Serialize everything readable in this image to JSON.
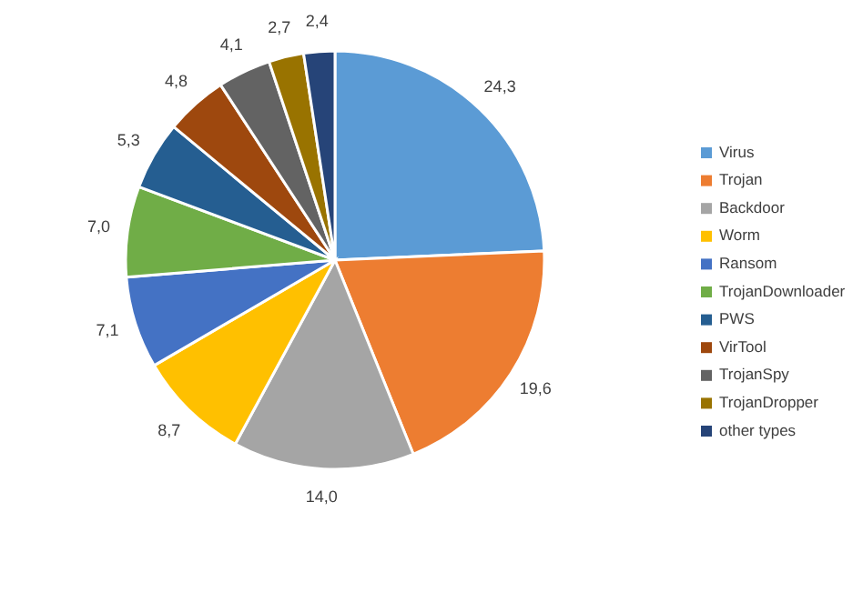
{
  "chart_data": {
    "type": "pie",
    "categories": [
      "Virus",
      "Trojan",
      "Backdoor",
      "Worm",
      "Ransom",
      "TrojanDownloader",
      "PWS",
      "VirTool",
      "TrojanSpy",
      "TrojanDropper",
      "other types"
    ],
    "values": [
      24.3,
      19.6,
      14.0,
      8.7,
      7.1,
      7.0,
      5.3,
      4.8,
      4.1,
      2.7,
      2.4
    ],
    "value_labels": [
      "24,3",
      "19,6",
      "14,0",
      "8,7",
      "7,1",
      "7,0",
      "5,3",
      "4,8",
      "4,1",
      "2,7",
      "2,4"
    ],
    "colors": [
      "#5b9bd5",
      "#ed7d31",
      "#a5a5a5",
      "#ffc000",
      "#4472c4",
      "#70ad47",
      "#255e91",
      "#9e480e",
      "#636363",
      "#997300",
      "#264478"
    ],
    "legend": "right"
  }
}
